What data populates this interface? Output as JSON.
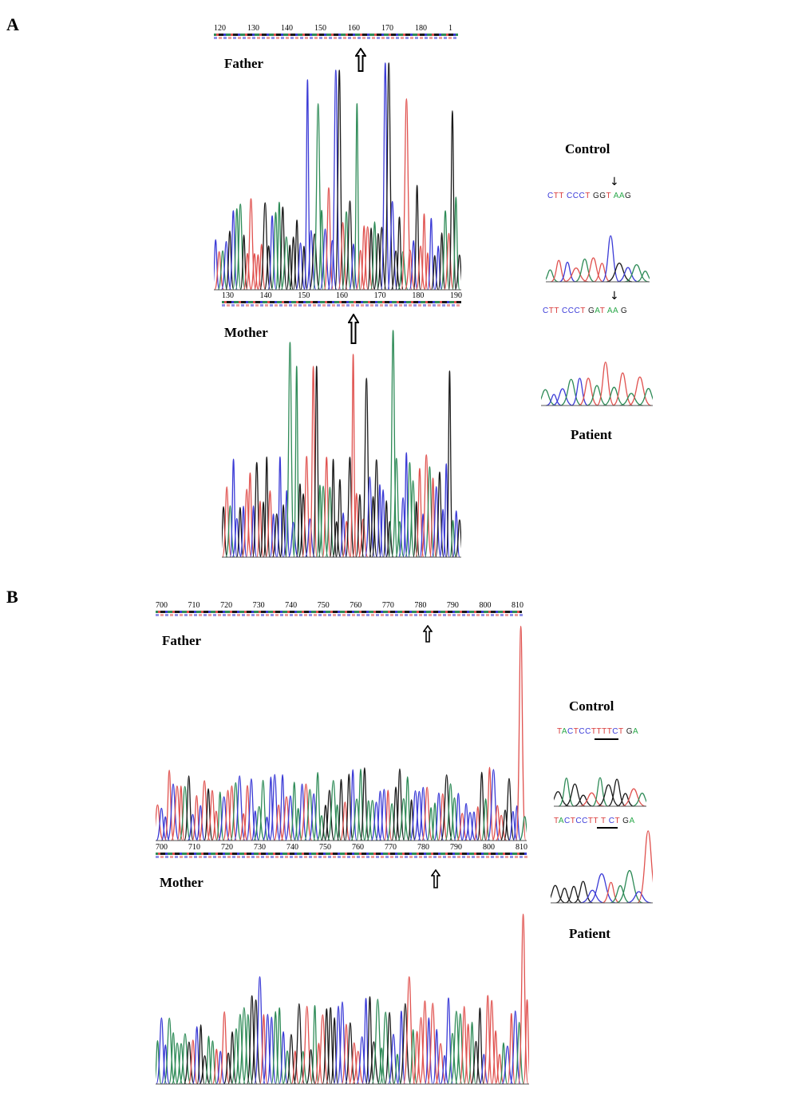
{
  "panels": {
    "a": {
      "letter": "A"
    },
    "b": {
      "letter": "B"
    }
  },
  "panelA": {
    "father": {
      "label": "Father",
      "ruler": [
        "120",
        "130",
        "140",
        "150",
        "160",
        "170",
        "180",
        "1"
      ]
    },
    "mother": {
      "label": "Mother",
      "ruler": [
        "130",
        "140",
        "150",
        "160",
        "170",
        "180",
        "190"
      ]
    },
    "control": {
      "label": "Control",
      "sequence": [
        {
          "t": "C",
          "c": "#3a3ad8"
        },
        {
          "t": "T",
          "c": "#d83a3a"
        },
        {
          "t": "T",
          "c": "#d83a3a"
        },
        {
          "t": " C",
          "c": "#3a3ad8"
        },
        {
          "t": "C",
          "c": "#3a3ad8"
        },
        {
          "t": "C",
          "c": "#3a3ad8"
        },
        {
          "t": "T",
          "c": "#d83a3a"
        },
        {
          "t": " G",
          "c": "#222222"
        },
        {
          "t": "G",
          "c": "#222222"
        },
        {
          "t": "T",
          "c": "#d83a3a"
        },
        {
          "t": " A",
          "c": "#2aa84a"
        },
        {
          "t": "A",
          "c": "#2aa84a"
        },
        {
          "t": "G",
          "c": "#222222"
        }
      ]
    },
    "patient": {
      "label": "Patient",
      "sequence": [
        {
          "t": "C",
          "c": "#3a3ad8"
        },
        {
          "t": "T",
          "c": "#d83a3a"
        },
        {
          "t": "T",
          "c": "#d83a3a"
        },
        {
          "t": " C",
          "c": "#3a3ad8"
        },
        {
          "t": "C",
          "c": "#3a3ad8"
        },
        {
          "t": "C",
          "c": "#3a3ad8"
        },
        {
          "t": "T",
          "c": "#d83a3a"
        },
        {
          "t": " G",
          "c": "#222222"
        },
        {
          "t": "A",
          "c": "#2aa84a"
        },
        {
          "t": "T",
          "c": "#d83a3a"
        },
        {
          "t": " A",
          "c": "#2aa84a"
        },
        {
          "t": "A",
          "c": "#2aa84a"
        },
        {
          "t": " G",
          "c": "#222222"
        }
      ]
    }
  },
  "panelB": {
    "father": {
      "label": "Father",
      "ruler": [
        "700",
        "710",
        "720",
        "730",
        "740",
        "750",
        "760",
        "770",
        "780",
        "790",
        "800",
        "810"
      ]
    },
    "mother": {
      "label": "Mother",
      "ruler": [
        "700",
        "710",
        "720",
        "730",
        "740",
        "750",
        "760",
        "770",
        "780",
        "790",
        "800",
        "810"
      ]
    },
    "control": {
      "label": "Control",
      "sequence": [
        {
          "t": "T",
          "c": "#d83a3a"
        },
        {
          "t": "A",
          "c": "#2aa84a"
        },
        {
          "t": "C",
          "c": "#3a3ad8"
        },
        {
          "t": "T",
          "c": "#d83a3a"
        },
        {
          "t": "C",
          "c": "#3a3ad8"
        },
        {
          "t": "C",
          "c": "#3a3ad8"
        },
        {
          "t": "T",
          "c": "#d83a3a"
        },
        {
          "t": "T",
          "c": "#d83a3a"
        },
        {
          "t": "T",
          "c": "#d83a3a"
        },
        {
          "t": "T",
          "c": "#d83a3a"
        },
        {
          "t": "C",
          "c": "#3a3ad8"
        },
        {
          "t": "T",
          "c": "#d83a3a"
        },
        {
          "t": " G",
          "c": "#222222"
        },
        {
          "t": "A",
          "c": "#2aa84a"
        }
      ]
    },
    "patient": {
      "label": "Patient",
      "sequence": [
        {
          "t": "T",
          "c": "#d83a3a"
        },
        {
          "t": "A",
          "c": "#2aa84a"
        },
        {
          "t": "C",
          "c": "#3a3ad8"
        },
        {
          "t": "T",
          "c": "#d83a3a"
        },
        {
          "t": "C",
          "c": "#3a3ad8"
        },
        {
          "t": "C",
          "c": "#3a3ad8"
        },
        {
          "t": "T",
          "c": "#d83a3a"
        },
        {
          "t": "T",
          "c": "#d83a3a"
        },
        {
          "t": " T",
          "c": "#d83a3a"
        },
        {
          "t": " C",
          "c": "#3a3ad8"
        },
        {
          "t": "T",
          "c": "#d83a3a"
        },
        {
          "t": " G",
          "c": "#222222"
        },
        {
          "t": "A",
          "c": "#2aa84a"
        }
      ]
    }
  },
  "colors": {
    "A": "#2e8b57",
    "C": "#3b3bd6",
    "G": "#1a1a1a",
    "T": "#e0524f"
  },
  "icons": [
    "hollow-up-arrow-icon",
    "down-arrow-icon"
  ]
}
